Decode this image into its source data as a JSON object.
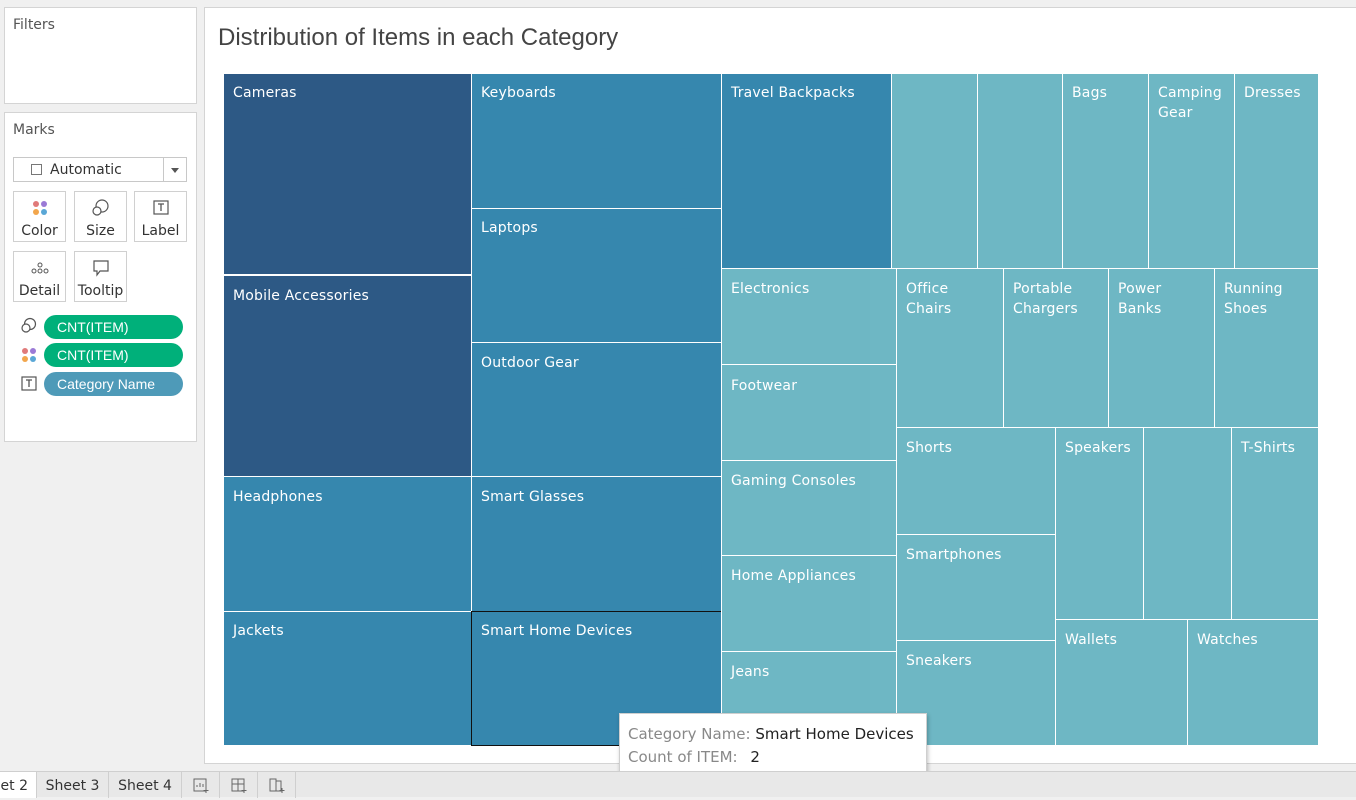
{
  "filters": {
    "title": "Filters"
  },
  "marks": {
    "title": "Marks",
    "mark_type": "Automatic",
    "cards": {
      "color": "Color",
      "size": "Size",
      "label": "Label",
      "detail": "Detail",
      "tooltip": "Tooltip"
    },
    "pills": [
      {
        "label": "CNT(ITEM)",
        "icon": "size-icon",
        "color": "#00b07a"
      },
      {
        "label": "CNT(ITEM)",
        "icon": "color-icon",
        "color": "#00b07a"
      },
      {
        "label": "Category Name",
        "icon": "label-icon",
        "color": "#4e9ab8"
      }
    ]
  },
  "viz": {
    "title": "Distribution of Items in each Category",
    "colors": {
      "high": "#2d5985",
      "mid": "#3687ae",
      "low": "#6eb7c4"
    },
    "tiles": [
      {
        "label": "Cameras"
      },
      {
        "label": "Mobile Accessories"
      },
      {
        "label": "Headphones"
      },
      {
        "label": "Jackets"
      },
      {
        "label": "Keyboards"
      },
      {
        "label": "Laptops"
      },
      {
        "label": "Outdoor Gear"
      },
      {
        "label": "Smart Glasses"
      },
      {
        "label": "Smart Home Devices"
      },
      {
        "label": "Travel Backpacks"
      },
      {
        "label": ""
      },
      {
        "label": ""
      },
      {
        "label": "Bags"
      },
      {
        "label": "Camping Gear"
      },
      {
        "label": "Dresses"
      },
      {
        "label": "Electronics"
      },
      {
        "label": "Footwear"
      },
      {
        "label": "Gaming Consoles"
      },
      {
        "label": "Home Appliances"
      },
      {
        "label": "Jeans"
      },
      {
        "label": "Office Chairs"
      },
      {
        "label": "Portable Chargers"
      },
      {
        "label": "Power Banks"
      },
      {
        "label": "Running Shoes"
      },
      {
        "label": "Shorts"
      },
      {
        "label": "Smartphones"
      },
      {
        "label": "Sneakers"
      },
      {
        "label": "Speakers"
      },
      {
        "label": ""
      },
      {
        "label": "T-Shirts"
      },
      {
        "label": "Wallets"
      },
      {
        "label": "Watches"
      }
    ]
  },
  "tooltip": {
    "category_key": "Category Name:",
    "category_value": "Smart Home Devices",
    "count_key": "Count of ITEM:",
    "count_value": "2"
  },
  "tabs": [
    "et 2",
    "Sheet 3",
    "Sheet 4"
  ]
}
